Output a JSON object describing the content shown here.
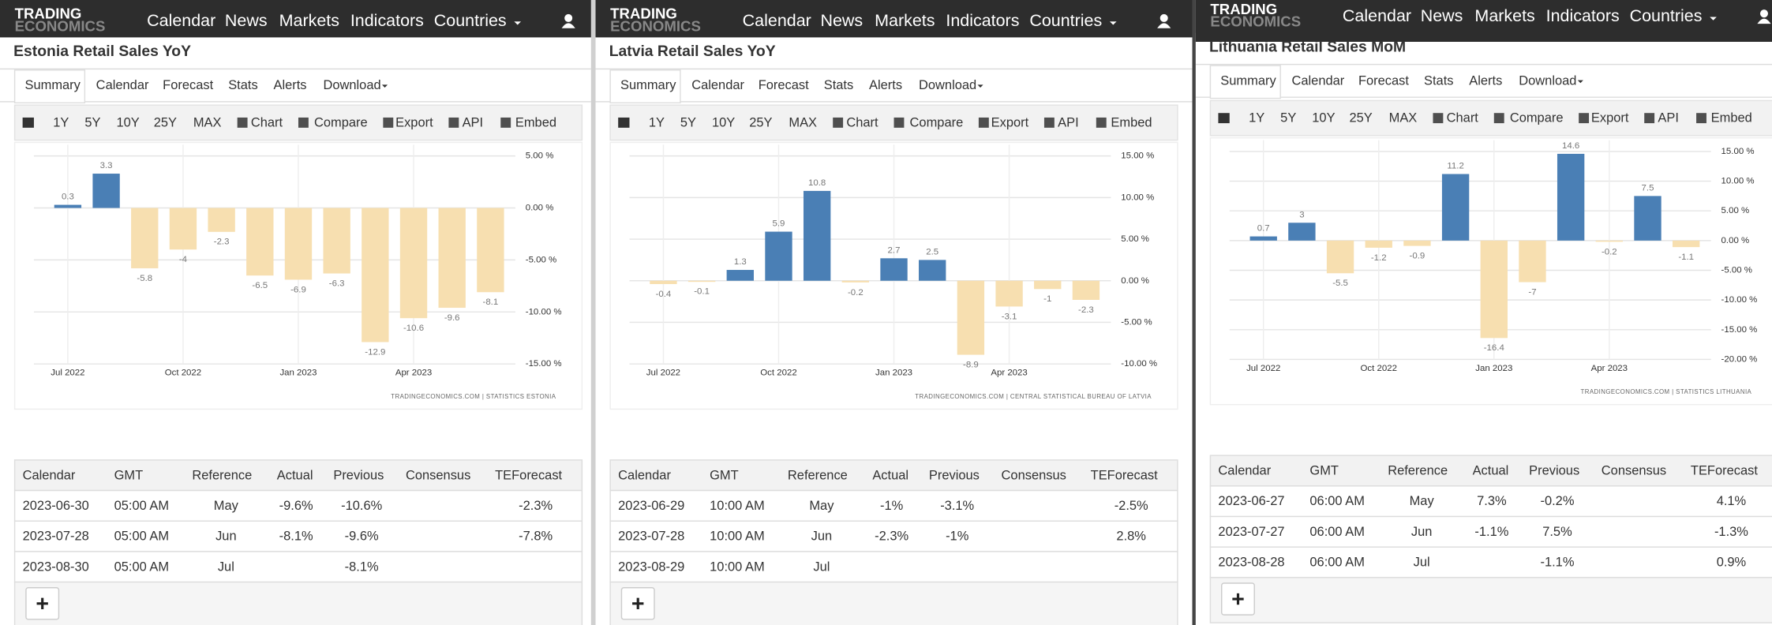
{
  "logo": [
    "TRADING",
    "ECONOMICS"
  ],
  "nav": [
    "Calendar",
    "News",
    "Markets",
    "Indicators",
    "Countries"
  ],
  "tabs": [
    "Summary",
    "Calendar",
    "Forecast",
    "Stats",
    "Alerts",
    "Download"
  ],
  "toolbar": [
    "1Y",
    "5Y",
    "10Y",
    "25Y",
    "MAX",
    "Chart",
    "Compare",
    "Export",
    "API",
    "Embed"
  ],
  "table_header": [
    "Calendar",
    "GMT",
    "Reference",
    "Actual",
    "Previous",
    "Consensus",
    "TEForecast"
  ],
  "panels": [
    {
      "title": "Estonia Retail Sales YoY",
      "chart_data": {
        "type": "bar",
        "categories": [
          "Jul 2022",
          null,
          null,
          "Oct 2022",
          null,
          null,
          "Jan 2023",
          null,
          null,
          "Apr 2023",
          null,
          null
        ],
        "values": [
          0.3,
          3.3,
          -5.8,
          -4,
          -2.3,
          -6.5,
          -6.9,
          -6.3,
          -12.9,
          -10.6,
          -9.6,
          -8.1
        ],
        "positive_color": "#4a7fb5",
        "negative_color": "#f7dfb0",
        "ylim": [
          -15,
          5
        ],
        "yticks": [
          {
            "value": 5,
            "label": "5.00 %"
          },
          {
            "value": 0,
            "label": "0.00 %"
          },
          {
            "value": -5,
            "label": "-5.00 %"
          },
          {
            "value": -10,
            "label": "-10.00 %"
          },
          {
            "value": -15,
            "label": "-15.00 %"
          }
        ],
        "grid": true,
        "source": "TRADINGECONOMICS.COM  |  STATISTICS ESTONIA"
      },
      "table_rows": [
        {
          "calendar": "2023-06-30",
          "gmt": "05:00 AM",
          "reference": "May",
          "actual": "-9.6%",
          "previous": "-10.6%",
          "teforecast": "-2.3%"
        },
        {
          "calendar": "2023-07-28",
          "gmt": "05:00 AM",
          "reference": "Jun",
          "actual": "-8.1%",
          "previous": "-9.6%",
          "teforecast": "-7.8%"
        },
        {
          "calendar": "2023-08-30",
          "gmt": "05:00 AM",
          "reference": "Jul",
          "previous": "-8.1%"
        }
      ]
    },
    {
      "title": "Latvia Retail Sales YoY",
      "chart_data": {
        "type": "bar",
        "categories": [
          "Jul 2022",
          null,
          null,
          "Oct 2022",
          null,
          null,
          "Jan 2023",
          null,
          null,
          "Apr 2023",
          null,
          null
        ],
        "values": [
          -0.4,
          -0.1,
          1.3,
          5.9,
          10.8,
          -0.2,
          2.7,
          2.5,
          -8.9,
          -3.1,
          -1,
          -2.3
        ],
        "positive_color": "#4a7fb5",
        "negative_color": "#f7dfb0",
        "ylim": [
          -10,
          15
        ],
        "yticks": [
          {
            "value": 15,
            "label": "15.00 %"
          },
          {
            "value": 10,
            "label": "10.00 %"
          },
          {
            "value": 5,
            "label": "5.00 %"
          },
          {
            "value": 0,
            "label": "0.00 %"
          },
          {
            "value": -5,
            "label": "-5.00 %"
          },
          {
            "value": -10,
            "label": "-10.00 %"
          }
        ],
        "grid": true,
        "source": "TRADINGECONOMICS.COM  |  CENTRAL STATISTICAL BUREAU OF LATVIA"
      },
      "table_rows": [
        {
          "calendar": "2023-06-29",
          "gmt": "10:00 AM",
          "reference": "May",
          "actual": "-1%",
          "previous": "-3.1%",
          "teforecast": "-2.5%"
        },
        {
          "calendar": "2023-07-28",
          "gmt": "10:00 AM",
          "reference": "Jun",
          "actual": "-2.3%",
          "previous": "-1%",
          "teforecast": "2.8%"
        },
        {
          "calendar": "2023-08-29",
          "gmt": "10:00 AM",
          "reference": "Jul"
        }
      ]
    },
    {
      "title": "Lithuania Retail Sales MoM",
      "chart_data": {
        "type": "bar",
        "categories": [
          "Jul 2022",
          null,
          null,
          "Oct 2022",
          null,
          null,
          "Jan 2023",
          null,
          null,
          "Apr 2023",
          null,
          null
        ],
        "values": [
          0.7,
          3,
          -5.5,
          -1.2,
          -0.9,
          11.2,
          -16.4,
          -7,
          14.6,
          -0.2,
          7.5,
          -1.1
        ],
        "positive_color": "#4a7fb5",
        "negative_color": "#f7dfb0",
        "ylim": [
          -20,
          15
        ],
        "yticks": [
          {
            "value": 15,
            "label": "15.00 %"
          },
          {
            "value": 10,
            "label": "10.00 %"
          },
          {
            "value": 5,
            "label": "5.00 %"
          },
          {
            "value": 0,
            "label": "0.00 %"
          },
          {
            "value": -5,
            "label": "-5.00 %"
          },
          {
            "value": -10,
            "label": "-10.00 %"
          },
          {
            "value": -15,
            "label": "-15.00 %"
          },
          {
            "value": -20,
            "label": "-20.00 %"
          }
        ],
        "grid": true,
        "source": "TRADINGECONOMICS.COM  |  STATISTICS LITHUANIA"
      },
      "table_rows": [
        {
          "calendar": "2023-06-27",
          "gmt": "06:00 AM",
          "reference": "May",
          "actual": "7.3%",
          "previous": "-0.2%",
          "teforecast": "4.1%"
        },
        {
          "calendar": "2023-07-27",
          "gmt": "06:00 AM",
          "reference": "Jun",
          "actual": "-1.1%",
          "previous": "7.5%",
          "teforecast": "-1.3%"
        },
        {
          "calendar": "2023-08-28",
          "gmt": "06:00 AM",
          "reference": "Jul",
          "previous": "-1.1%",
          "teforecast": "0.9%"
        }
      ]
    }
  ]
}
